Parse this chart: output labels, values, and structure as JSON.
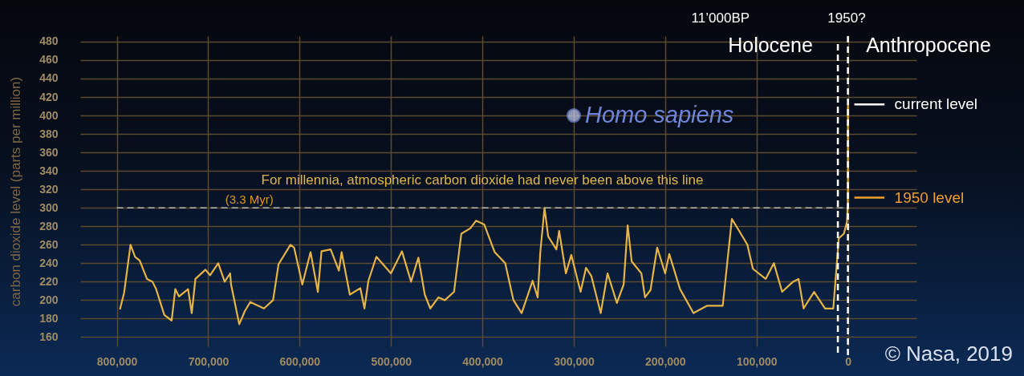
{
  "chart_data": {
    "type": "line",
    "ylabel": "carbon dioxide level (parts per million)",
    "xlim": [
      840000,
      -75000
    ],
    "ylim": [
      150,
      486
    ],
    "xticks": [
      {
        "value": 800000,
        "label": "800,000"
      },
      {
        "value": 700000,
        "label": "700,000"
      },
      {
        "value": 600000,
        "label": "600,000"
      },
      {
        "value": 500000,
        "label": "500,000"
      },
      {
        "value": 400000,
        "label": "400,000"
      },
      {
        "value": 300000,
        "label": "300,000"
      },
      {
        "value": 200000,
        "label": "200,000"
      },
      {
        "value": 100000,
        "label": "100,000"
      },
      0
    ],
    "yticks": [
      160,
      180,
      200,
      220,
      240,
      260,
      280,
      300,
      320,
      340,
      360,
      380,
      400,
      420,
      440,
      460,
      480
    ],
    "grid": true,
    "series": [
      {
        "color": "#e6b445",
        "x": [
          796600,
          792000,
          785000,
          780000,
          775000,
          767000,
          761000,
          757000,
          748000,
          740000,
          736000,
          732000,
          722000,
          718000,
          714000,
          703000,
          698000,
          689000,
          682000,
          676000,
          675000,
          666000,
          660000,
          654000,
          639000,
          629000,
          623000,
          610000,
          606000,
          597000,
          588000,
          580000,
          576000,
          566000,
          557000,
          554000,
          545000,
          533500,
          529000,
          524700,
          516000,
          500000,
          488000,
          478000,
          470000,
          463000,
          457000,
          448000,
          441000,
          431000,
          423000,
          413000,
          407000,
          398000,
          386500,
          375000,
          366000,
          357000,
          345000,
          339500,
          336600,
          332000,
          328000,
          319000,
          316000,
          308600,
          302700,
          292500,
          286600,
          280700,
          270500,
          263000,
          252800,
          245400,
          241000,
          236600,
          226000,
          222000,
          216000,
          208700,
          200000,
          195500,
          183700,
          169000,
          154000,
          137000,
          127000,
          119000,
          110000,
          104000,
          90000,
          81000,
          72000,
          60000,
          54000,
          48500,
          37000,
          25000,
          16000,
          10000,
          4400,
          1000,
          0,
          0
        ],
        "values": [
          190,
          208,
          260,
          247,
          243,
          223,
          220,
          212,
          184,
          178,
          212,
          204,
          212,
          186,
          223,
          233,
          227,
          240,
          220,
          229,
          217,
          174,
          188,
          198,
          191,
          200,
          239,
          260,
          257,
          217,
          252,
          209,
          253,
          255,
          232,
          252,
          206,
          213,
          191,
          221,
          247,
          229,
          253,
          220,
          246,
          206,
          191,
          203,
          200,
          209,
          272,
          278,
          286,
          282,
          252,
          240,
          200,
          186,
          221,
          203,
          252,
          300,
          269,
          255,
          275,
          229,
          249,
          209,
          235,
          226,
          186,
          229,
          197,
          217,
          281,
          242,
          229,
          203,
          211,
          257,
          229,
          250,
          212,
          186,
          194,
          194,
          288,
          275,
          260,
          234,
          223,
          240,
          209,
          220,
          223,
          191,
          209,
          191,
          191,
          267,
          272,
          285,
          311,
          412
        ]
      },
      {
        "type": "scatter",
        "color": "#c5cdf5",
        "marker": "circle",
        "x": [
          300000
        ],
        "values": [
          400
        ]
      }
    ],
    "ref_lines": [
      {
        "axis": "y",
        "value": 300,
        "label": "For millennia, atmospheric carbon dioxide had never been above this line",
        "color": "#b8b8b8",
        "line_style": "dashed"
      },
      {
        "axis": "x",
        "value": 11000,
        "label": "11’000BP",
        "color": "#ffffff",
        "line_style": "dashed"
      },
      {
        "axis": "x",
        "value": 0,
        "color": "#ffffff",
        "line_style": "dashed"
      }
    ],
    "annotations": [
      {
        "text": "(3.3 Myr)",
        "x": 655000,
        "y": 300
      },
      {
        "text": "Homo sapiens",
        "x": 300000,
        "y": 400
      },
      {
        "text": "current level",
        "x": 0,
        "y": 412
      },
      {
        "text": "1950 level",
        "x": 0,
        "y": 311
      },
      "1950?",
      "Holocene",
      "Anthropocene",
      "© Nasa, 2019"
    ]
  }
}
